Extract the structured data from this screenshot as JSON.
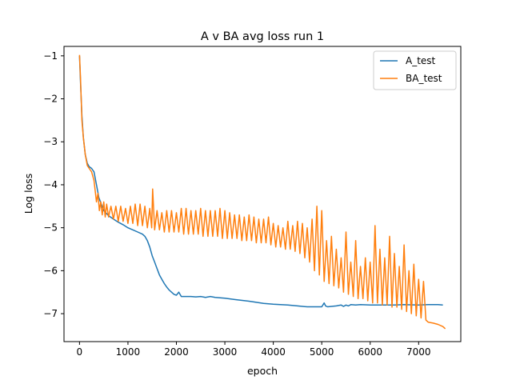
{
  "chart_data": {
    "type": "line",
    "title": "A v BA avg loss run 1",
    "xlabel": "epoch",
    "ylabel": "Log loss",
    "xlim": [
      -320,
      7870
    ],
    "ylim": [
      -7.65,
      -0.78
    ],
    "xticks": [
      0,
      1000,
      2000,
      3000,
      4000,
      5000,
      6000,
      7000
    ],
    "yticks": [
      -1,
      -2,
      -3,
      -4,
      -5,
      -6,
      -7
    ],
    "ytick_labels": [
      "−1",
      "−2",
      "−3",
      "−4",
      "−5",
      "−6",
      "−7"
    ],
    "grid": false,
    "legend_position": "top-right",
    "series": [
      {
        "name": "A_test",
        "color": "#1f77b4",
        "x": [
          0,
          20,
          50,
          80,
          120,
          160,
          200,
          250,
          300,
          350,
          400,
          450,
          500,
          600,
          700,
          800,
          900,
          1000,
          1100,
          1200,
          1300,
          1350,
          1400,
          1450,
          1500,
          1550,
          1600,
          1650,
          1700,
          1750,
          1800,
          1850,
          1900,
          1950,
          2000,
          2050,
          2100,
          2200,
          2300,
          2400,
          2500,
          2600,
          2700,
          2800,
          2900,
          3000,
          3200,
          3500,
          3800,
          4000,
          4300,
          4500,
          4700,
          4900,
          5000,
          5050,
          5080,
          5120,
          5200,
          5300,
          5400,
          5450,
          5500,
          5550,
          5600,
          5700,
          5800,
          6000,
          6200,
          6400,
          6500,
          6700,
          7000,
          7200,
          7400,
          7500
        ],
        "y": [
          -1.0,
          -1.6,
          -2.4,
          -2.9,
          -3.3,
          -3.5,
          -3.58,
          -3.62,
          -3.7,
          -4.0,
          -4.3,
          -4.45,
          -4.6,
          -4.72,
          -4.8,
          -4.87,
          -4.93,
          -5.0,
          -5.05,
          -5.1,
          -5.15,
          -5.2,
          -5.3,
          -5.45,
          -5.65,
          -5.8,
          -5.95,
          -6.1,
          -6.2,
          -6.3,
          -6.38,
          -6.45,
          -6.5,
          -6.55,
          -6.57,
          -6.5,
          -6.6,
          -6.6,
          -6.6,
          -6.61,
          -6.6,
          -6.62,
          -6.6,
          -6.62,
          -6.63,
          -6.64,
          -6.67,
          -6.71,
          -6.76,
          -6.78,
          -6.8,
          -6.82,
          -6.84,
          -6.84,
          -6.84,
          -6.75,
          -6.82,
          -6.84,
          -6.83,
          -6.82,
          -6.8,
          -6.83,
          -6.8,
          -6.82,
          -6.79,
          -6.8,
          -6.79,
          -6.8,
          -6.8,
          -6.8,
          -6.8,
          -6.79,
          -6.8,
          -6.79,
          -6.79,
          -6.8
        ]
      },
      {
        "name": "BA_test",
        "color": "#ff7f0e",
        "x": [
          0,
          20,
          50,
          80,
          120,
          160,
          200,
          250,
          300,
          350,
          380,
          410,
          440,
          470,
          500,
          530,
          560,
          600,
          650,
          700,
          750,
          800,
          850,
          900,
          950,
          1000,
          1050,
          1100,
          1150,
          1200,
          1250,
          1300,
          1350,
          1400,
          1450,
          1490,
          1510,
          1550,
          1600,
          1650,
          1700,
          1750,
          1800,
          1850,
          1900,
          1950,
          2000,
          2050,
          2100,
          2150,
          2200,
          2250,
          2300,
          2350,
          2400,
          2450,
          2500,
          2550,
          2600,
          2650,
          2700,
          2750,
          2800,
          2850,
          2900,
          2950,
          3000,
          3050,
          3100,
          3150,
          3200,
          3250,
          3300,
          3350,
          3400,
          3450,
          3500,
          3550,
          3600,
          3650,
          3700,
          3750,
          3800,
          3850,
          3900,
          3950,
          4000,
          4050,
          4100,
          4150,
          4200,
          4250,
          4300,
          4350,
          4400,
          4450,
          4500,
          4550,
          4600,
          4650,
          4700,
          4750,
          4800,
          4850,
          4900,
          4950,
          5000,
          5050,
          5100,
          5150,
          5200,
          5250,
          5300,
          5350,
          5400,
          5450,
          5500,
          5550,
          5600,
          5650,
          5700,
          5750,
          5800,
          5850,
          5900,
          5950,
          6000,
          6050,
          6100,
          6150,
          6200,
          6250,
          6300,
          6350,
          6400,
          6450,
          6500,
          6550,
          6600,
          6650,
          6700,
          6750,
          6800,
          6850,
          6900,
          6950,
          7000,
          7050,
          7100,
          7150,
          7200,
          7300,
          7400,
          7500,
          7550
        ],
        "y": [
          -0.98,
          -1.5,
          -2.5,
          -2.9,
          -3.3,
          -3.55,
          -3.62,
          -3.7,
          -3.9,
          -4.4,
          -4.2,
          -4.6,
          -4.4,
          -4.7,
          -4.4,
          -4.75,
          -4.45,
          -4.75,
          -4.5,
          -4.8,
          -4.5,
          -4.85,
          -4.5,
          -4.85,
          -4.55,
          -4.9,
          -4.5,
          -4.9,
          -4.45,
          -4.95,
          -4.45,
          -4.95,
          -4.5,
          -5.0,
          -4.55,
          -5.0,
          -4.1,
          -5.05,
          -4.6,
          -5.05,
          -4.65,
          -5.1,
          -4.6,
          -5.1,
          -4.6,
          -5.1,
          -4.65,
          -5.1,
          -4.55,
          -5.15,
          -4.55,
          -5.15,
          -4.6,
          -5.15,
          -4.6,
          -5.15,
          -4.55,
          -5.2,
          -4.6,
          -5.2,
          -4.6,
          -5.2,
          -4.6,
          -5.2,
          -4.55,
          -5.25,
          -4.6,
          -5.25,
          -4.65,
          -5.25,
          -4.7,
          -5.25,
          -4.7,
          -5.3,
          -4.75,
          -5.3,
          -4.7,
          -5.3,
          -4.75,
          -5.35,
          -4.8,
          -5.35,
          -4.8,
          -5.35,
          -4.75,
          -5.4,
          -4.9,
          -5.45,
          -4.95,
          -5.45,
          -5.0,
          -5.5,
          -4.85,
          -5.5,
          -4.95,
          -5.55,
          -4.85,
          -5.6,
          -4.9,
          -5.7,
          -5.0,
          -5.8,
          -4.8,
          -6.0,
          -4.5,
          -6.1,
          -4.6,
          -6.25,
          -5.3,
          -6.3,
          -5.2,
          -6.35,
          -5.5,
          -6.4,
          -5.7,
          -6.5,
          -5.1,
          -6.55,
          -5.8,
          -6.6,
          -5.3,
          -6.65,
          -5.9,
          -6.65,
          -5.7,
          -6.7,
          -5.8,
          -6.75,
          -4.95,
          -6.75,
          -5.5,
          -6.8,
          -5.7,
          -6.8,
          -5.2,
          -6.85,
          -5.6,
          -6.85,
          -5.9,
          -6.9,
          -5.4,
          -6.95,
          -6.0,
          -7.0,
          -5.85,
          -7.05,
          -6.2,
          -7.1,
          -6.25,
          -7.15,
          -7.2,
          -7.22,
          -7.25,
          -7.3,
          -7.35
        ]
      }
    ]
  }
}
